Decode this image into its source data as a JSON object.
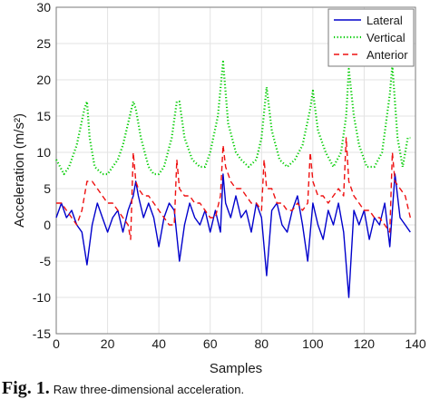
{
  "chart_data": {
    "type": "line",
    "xlabel": "Samples",
    "ylabel": "Acceleration (m/s²)",
    "xlim": [
      0,
      140
    ],
    "ylim": [
      -15,
      30
    ],
    "xticks": [
      0,
      20,
      40,
      60,
      80,
      100,
      120,
      140
    ],
    "yticks": [
      -15,
      -10,
      -5,
      0,
      5,
      10,
      15,
      20,
      25,
      30
    ],
    "grid": true,
    "legend": "top-right",
    "series": [
      {
        "name": "Lateral",
        "color": "#0000cc",
        "style": "solid",
        "x": [
          0,
          2,
          4,
          6,
          8,
          10,
          12,
          14,
          16,
          18,
          20,
          22,
          24,
          26,
          28,
          30,
          31,
          32,
          34,
          36,
          38,
          40,
          42,
          44,
          46,
          48,
          50,
          52,
          54,
          56,
          58,
          60,
          62,
          64,
          65,
          66,
          68,
          70,
          72,
          74,
          76,
          78,
          80,
          82,
          84,
          86,
          88,
          90,
          92,
          94,
          96,
          98,
          100,
          102,
          104,
          106,
          108,
          110,
          112,
          114,
          116,
          118,
          120,
          122,
          124,
          126,
          128,
          130,
          132,
          134,
          136,
          138
        ],
        "y": [
          1,
          3,
          1,
          2,
          0,
          -1,
          -5.5,
          0,
          3,
          1,
          -1,
          1,
          2,
          -1,
          2,
          4,
          6,
          4,
          1,
          3,
          1,
          -3,
          1,
          3,
          2,
          -5,
          0,
          3,
          1,
          0,
          2,
          -1,
          2,
          -1,
          7,
          3,
          1,
          4,
          1,
          2,
          -1,
          3,
          1,
          -7,
          2,
          3,
          0,
          -1,
          2,
          4,
          0,
          -5,
          3,
          0,
          -2,
          2,
          0,
          3,
          -1,
          -10,
          2,
          0,
          2,
          -2,
          1,
          0,
          3,
          -3,
          7,
          1,
          0,
          -1
        ]
      },
      {
        "name": "Vertical",
        "color": "#00cc00",
        "style": "dotted",
        "x": [
          0,
          3,
          5,
          8,
          11,
          12,
          13,
          15,
          18,
          20,
          22,
          24,
          26,
          28,
          30,
          31,
          33,
          36,
          38,
          40,
          42,
          45,
          47,
          48,
          50,
          53,
          56,
          58,
          60,
          63,
          65,
          67,
          70,
          72,
          75,
          78,
          80,
          82,
          84,
          87,
          90,
          93,
          96,
          99,
          100,
          102,
          105,
          108,
          111,
          113,
          114,
          116,
          118,
          121,
          124,
          127,
          130,
          131,
          133,
          135,
          137,
          138
        ],
        "y": [
          9,
          7,
          8,
          11,
          16,
          17,
          12,
          8,
          7,
          7,
          8,
          9,
          11,
          14,
          17,
          16,
          12,
          8,
          7,
          7,
          8,
          12,
          17,
          17,
          12,
          9,
          8,
          8,
          10,
          15,
          22.5,
          14,
          10,
          9,
          8,
          9,
          12,
          19,
          13,
          9,
          8,
          9,
          11,
          16,
          18.5,
          13,
          10,
          8,
          10,
          15,
          21.5,
          15,
          11,
          8,
          8,
          10,
          18,
          22,
          12,
          8,
          12,
          12
        ]
      },
      {
        "name": "Anterior",
        "color": "#ee1111",
        "style": "dashed",
        "x": [
          0,
          2,
          4,
          6,
          8,
          10,
          12,
          14,
          16,
          18,
          20,
          22,
          24,
          26,
          28,
          29,
          30,
          31,
          32,
          34,
          36,
          38,
          40,
          42,
          44,
          46,
          47,
          48,
          50,
          52,
          54,
          56,
          58,
          60,
          62,
          64,
          65,
          66,
          68,
          70,
          72,
          74,
          76,
          78,
          80,
          81,
          82,
          84,
          86,
          88,
          90,
          92,
          94,
          96,
          98,
          99,
          100,
          102,
          104,
          106,
          108,
          110,
          112,
          113,
          114,
          116,
          118,
          120,
          122,
          124,
          126,
          128,
          130,
          131,
          132,
          134,
          136,
          138
        ],
        "y": [
          3,
          3,
          2,
          1,
          0,
          2,
          6,
          6,
          5,
          4,
          3,
          3,
          2,
          1,
          0,
          -2,
          10,
          6,
          5,
          4,
          4,
          3,
          2,
          1,
          0,
          0,
          9,
          5,
          4,
          4,
          3,
          3,
          2,
          1,
          1,
          4,
          11,
          8,
          6,
          5,
          5,
          4,
          3,
          3,
          2,
          9,
          5,
          5,
          3,
          3,
          2,
          2,
          3,
          2,
          3,
          10,
          6,
          4,
          4,
          3,
          4,
          5,
          4,
          12,
          6,
          4,
          3,
          2,
          2,
          1,
          1,
          0,
          -1,
          10,
          6,
          5,
          4,
          1
        ]
      }
    ]
  },
  "caption": {
    "label": "Fig. 1.",
    "text": "Raw three-dimensional acceleration."
  }
}
